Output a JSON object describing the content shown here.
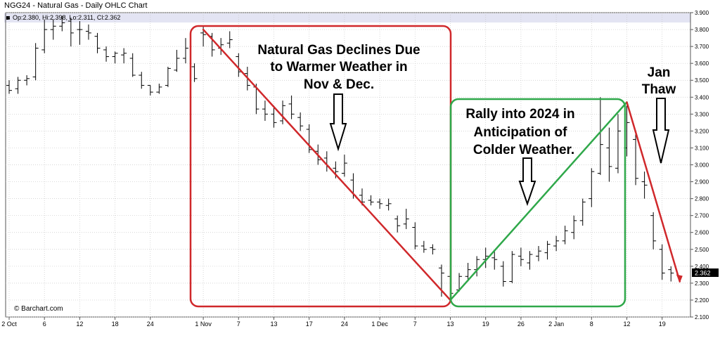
{
  "header": {
    "title": "NGG24 - Natural Gas - Daily OHLC Chart",
    "ohlc_readout": "Op:2.380, Hi:2.398, Lo:2.311, Cl:2.362"
  },
  "watermark": "© Barchart.com",
  "colors": {
    "bar": "#000000",
    "red": "#d0282b",
    "green": "#2fa84a",
    "grid": "#c8c8c8",
    "axis": "#555555"
  },
  "chart_data": {
    "type": "ohlc",
    "title": "NGG24 - Natural Gas - Daily OHLC Chart",
    "ylim": [
      2.1,
      3.9
    ],
    "y_ticks": [
      "2.100",
      "2.200",
      "2.300",
      "2.400",
      "2.500",
      "2.600",
      "2.700",
      "2.800",
      "2.900",
      "3.000",
      "3.100",
      "3.200",
      "3.300",
      "3.400",
      "3.500",
      "3.600",
      "3.700",
      "3.800",
      "3.900"
    ],
    "x_ticks": [
      {
        "label": "2 Oct",
        "index": 0
      },
      {
        "label": "6",
        "index": 4
      },
      {
        "label": "12",
        "index": 8
      },
      {
        "label": "18",
        "index": 12
      },
      {
        "label": "24",
        "index": 16
      },
      {
        "label": "1 Nov",
        "index": 22
      },
      {
        "label": "7",
        "index": 26
      },
      {
        "label": "13",
        "index": 30
      },
      {
        "label": "17",
        "index": 34
      },
      {
        "label": "24",
        "index": 38
      },
      {
        "label": "1 Dec",
        "index": 42
      },
      {
        "label": "7",
        "index": 46
      },
      {
        "label": "13",
        "index": 50
      },
      {
        "label": "19",
        "index": 54
      },
      {
        "label": "26",
        "index": 58
      },
      {
        "label": "2 Jan",
        "index": 62
      },
      {
        "label": "8",
        "index": 66
      },
      {
        "label": "12",
        "index": 70
      },
      {
        "label": "19",
        "index": 74
      }
    ],
    "last_price": "2.362",
    "bars": [
      [
        3.47,
        3.5,
        3.42,
        3.44
      ],
      [
        3.45,
        3.52,
        3.42,
        3.5
      ],
      [
        3.5,
        3.53,
        3.47,
        3.51
      ],
      [
        3.52,
        3.72,
        3.5,
        3.69
      ],
      [
        3.68,
        3.86,
        3.66,
        3.8
      ],
      [
        3.8,
        3.86,
        3.74,
        3.82
      ],
      [
        3.82,
        3.88,
        3.79,
        3.84
      ],
      [
        3.85,
        3.87,
        3.7,
        3.78
      ],
      [
        3.8,
        3.85,
        3.71,
        3.8
      ],
      [
        3.79,
        3.83,
        3.74,
        3.78
      ],
      [
        3.76,
        3.78,
        3.66,
        3.69
      ],
      [
        3.68,
        3.7,
        3.61,
        3.64
      ],
      [
        3.64,
        3.67,
        3.6,
        3.66
      ],
      [
        3.65,
        3.69,
        3.6,
        3.66
      ],
      [
        3.63,
        3.66,
        3.52,
        3.53
      ],
      [
        3.53,
        3.55,
        3.45,
        3.47
      ],
      [
        3.47,
        3.47,
        3.41,
        3.43
      ],
      [
        3.43,
        3.48,
        3.42,
        3.46
      ],
      [
        3.47,
        3.58,
        3.46,
        3.57
      ],
      [
        3.56,
        3.68,
        3.55,
        3.63
      ],
      [
        3.63,
        3.75,
        3.6,
        3.69
      ],
      [
        3.58,
        3.6,
        3.49,
        3.51
      ],
      [
        3.78,
        3.82,
        3.7,
        3.77
      ],
      [
        3.76,
        3.78,
        3.64,
        3.68
      ],
      [
        3.69,
        3.75,
        3.65,
        3.71
      ],
      [
        3.72,
        3.79,
        3.69,
        3.74
      ],
      [
        3.64,
        3.66,
        3.52,
        3.55
      ],
      [
        3.54,
        3.58,
        3.44,
        3.47
      ],
      [
        3.46,
        3.48,
        3.3,
        3.33
      ],
      [
        3.33,
        3.38,
        3.26,
        3.3
      ],
      [
        3.3,
        3.35,
        3.22,
        3.25
      ],
      [
        3.26,
        3.38,
        3.24,
        3.35
      ],
      [
        3.36,
        3.41,
        3.27,
        3.3
      ],
      [
        3.28,
        3.31,
        3.2,
        3.23
      ],
      [
        3.21,
        3.24,
        3.07,
        3.09
      ],
      [
        3.08,
        3.12,
        3.0,
        3.03
      ],
      [
        3.04,
        3.08,
        2.96,
        2.99
      ],
      [
        2.98,
        3.02,
        2.92,
        2.96
      ],
      [
        2.95,
        3.06,
        2.93,
        3.01
      ],
      [
        2.91,
        2.95,
        2.8,
        2.82
      ],
      [
        2.82,
        2.86,
        2.76,
        2.78
      ],
      [
        2.79,
        2.82,
        2.76,
        2.78
      ],
      [
        2.78,
        2.8,
        2.74,
        2.77
      ],
      [
        2.76,
        2.8,
        2.73,
        2.77
      ],
      [
        2.68,
        2.7,
        2.6,
        2.64
      ],
      [
        2.65,
        2.74,
        2.62,
        2.68
      ],
      [
        2.63,
        2.66,
        2.5,
        2.52
      ],
      [
        2.52,
        2.55,
        2.48,
        2.5
      ],
      [
        2.51,
        2.53,
        2.47,
        2.5
      ],
      [
        2.39,
        2.41,
        2.22,
        2.36
      ],
      [
        2.34,
        2.36,
        2.21,
        2.24
      ],
      [
        2.26,
        2.36,
        2.25,
        2.34
      ],
      [
        2.34,
        2.42,
        2.31,
        2.38
      ],
      [
        2.38,
        2.46,
        2.34,
        2.44
      ],
      [
        2.44,
        2.51,
        2.39,
        2.46
      ],
      [
        2.45,
        2.49,
        2.38,
        2.44
      ],
      [
        2.4,
        2.43,
        2.28,
        2.31
      ],
      [
        2.31,
        2.49,
        2.3,
        2.47
      ],
      [
        2.46,
        2.51,
        2.4,
        2.44
      ],
      [
        2.42,
        2.49,
        2.38,
        2.47
      ],
      [
        2.46,
        2.52,
        2.43,
        2.49
      ],
      [
        2.48,
        2.55,
        2.44,
        2.53
      ],
      [
        2.52,
        2.58,
        2.49,
        2.55
      ],
      [
        2.55,
        2.64,
        2.53,
        2.61
      ],
      [
        2.6,
        2.7,
        2.56,
        2.67
      ],
      [
        2.67,
        2.8,
        2.64,
        2.78
      ],
      [
        2.8,
        2.98,
        2.75,
        2.96
      ],
      [
        2.95,
        3.4,
        2.94,
        3.12
      ],
      [
        3.1,
        3.22,
        2.9,
        2.99
      ],
      [
        2.98,
        3.3,
        2.95,
        3.2
      ],
      [
        3.1,
        3.35,
        3.05,
        3.25
      ],
      [
        3.15,
        3.18,
        2.88,
        2.92
      ],
      [
        2.9,
        2.96,
        2.8,
        2.88
      ],
      [
        2.7,
        2.72,
        2.5,
        2.55
      ],
      [
        2.5,
        2.53,
        2.32,
        2.36
      ],
      [
        2.38,
        2.4,
        2.31,
        2.36
      ]
    ],
    "annotations": [
      {
        "text": "Natural Gas Declines Due to Warmer Weather in Nov & Dec.",
        "lines": [
          "Natural Gas Declines Due",
          "to Warmer Weather in",
          "Nov & Dec."
        ]
      },
      {
        "text": "Rally into 2024 in Anticipation of Colder Weather.",
        "lines": [
          "Rally into 2024 in",
          "Anticipation of",
          "Colder Weather."
        ]
      },
      {
        "text": "Jan Thaw",
        "lines": [
          "Jan",
          "Thaw"
        ]
      }
    ],
    "trendlines": [
      {
        "color": "red",
        "from": [
          22,
          3.8
        ],
        "to": [
          50,
          2.2
        ]
      },
      {
        "color": "green",
        "from": [
          50,
          2.2
        ],
        "to": [
          70,
          3.37
        ]
      },
      {
        "color": "red",
        "from": [
          70,
          3.37
        ],
        "to": [
          76,
          2.31
        ]
      }
    ]
  }
}
